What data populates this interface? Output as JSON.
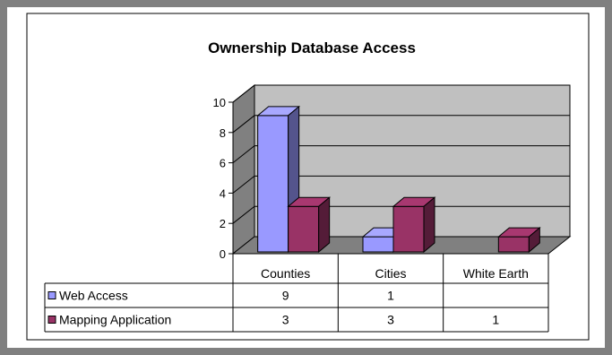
{
  "chart_data": {
    "type": "bar",
    "title": "Ownership Database Access",
    "categories": [
      "Counties",
      "Cities",
      "White Earth"
    ],
    "series": [
      {
        "name": "Web Access",
        "values": [
          9,
          1,
          null
        ]
      },
      {
        "name": "Mapping Application",
        "values": [
          3,
          3,
          1
        ]
      }
    ],
    "ylim": [
      0,
      10
    ],
    "y_ticks": [
      0,
      2,
      4,
      6,
      8,
      10
    ],
    "grid": true,
    "legend": "data-table",
    "table_values": [
      [
        "9",
        "1",
        ""
      ],
      [
        "3",
        "3",
        "1"
      ]
    ]
  },
  "colors": {
    "web_access": "#9999ff",
    "mapping_application": "#993366",
    "plot_wall": "#c0c0c0",
    "floor": "#808080",
    "background": "#808080"
  }
}
